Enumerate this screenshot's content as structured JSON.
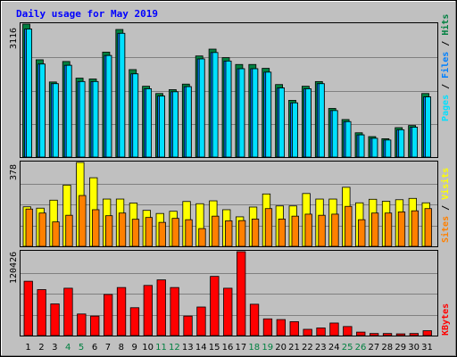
{
  "title": "Daily usage for May 2019",
  "colors": {
    "background": "#c0c0c0",
    "title": "#0000ff",
    "hits": "#008040",
    "files": "#0080ff",
    "pages": "#00e0ff",
    "visits": "#ffff00",
    "sites": "#ff8000",
    "kbytes": "#ff0000",
    "weekend_day": "#008040",
    "weekday": "#000000"
  },
  "panels": {
    "top": {
      "max_label": "3116",
      "legend": [
        "Pages",
        "Files",
        "Hits"
      ]
    },
    "middle": {
      "max_label": "378",
      "legend": [
        "Sites",
        "Visits"
      ]
    },
    "bottom": {
      "max_label": "120426",
      "legend": [
        "KBytes"
      ]
    }
  },
  "chart_data": [
    {
      "type": "bar",
      "title": "Daily usage for May 2019",
      "categories": [
        "1",
        "2",
        "3",
        "4",
        "5",
        "6",
        "7",
        "8",
        "9",
        "10",
        "11",
        "12",
        "13",
        "14",
        "15",
        "16",
        "17",
        "18",
        "19",
        "20",
        "21",
        "22",
        "23",
        "24",
        "25",
        "26",
        "27",
        "28",
        "29",
        "30",
        "31"
      ],
      "weekend_days": [
        "4",
        "5",
        "11",
        "12",
        "18",
        "19",
        "25",
        "26"
      ],
      "ylim": [
        0,
        3116
      ],
      "series": [
        {
          "name": "Hits",
          "values": [
            3116,
            2280,
            1760,
            2240,
            1850,
            1830,
            2460,
            2990,
            2050,
            1660,
            1490,
            1580,
            1710,
            2370,
            2530,
            2330,
            2170,
            2170,
            2080,
            1700,
            1330,
            1660,
            1770,
            1140,
            880,
            570,
            480,
            430,
            690,
            740,
            1490
          ]
        },
        {
          "name": "Files",
          "values": [
            3000,
            2180,
            1720,
            2150,
            1770,
            1770,
            2380,
            2900,
            1950,
            1600,
            1430,
            1530,
            1650,
            2300,
            2450,
            2250,
            2070,
            2070,
            1990,
            1620,
            1270,
            1600,
            1720,
            1090,
            830,
            520,
            440,
            400,
            640,
            700,
            1410
          ]
        },
        {
          "name": "Pages",
          "values": [
            3000,
            2180,
            1720,
            2150,
            1770,
            1770,
            2380,
            2900,
            1950,
            1600,
            1430,
            1530,
            1650,
            2300,
            2450,
            2250,
            2070,
            2070,
            1990,
            1620,
            1270,
            1600,
            1720,
            1090,
            830,
            520,
            440,
            400,
            640,
            700,
            1410
          ]
        }
      ]
    },
    {
      "type": "bar",
      "categories": [
        "1",
        "2",
        "3",
        "4",
        "5",
        "6",
        "7",
        "8",
        "9",
        "10",
        "11",
        "12",
        "13",
        "14",
        "15",
        "16",
        "17",
        "18",
        "19",
        "20",
        "21",
        "22",
        "23",
        "24",
        "25",
        "26",
        "27",
        "28",
        "29",
        "30",
        "31"
      ],
      "ylim": [
        0,
        378
      ],
      "series": [
        {
          "name": "Visits",
          "values": [
            178,
            172,
            208,
            276,
            378,
            309,
            213,
            213,
            195,
            162,
            148,
            158,
            202,
            192,
            205,
            165,
            133,
            177,
            236,
            182,
            182,
            238,
            213,
            213,
            266,
            196,
            212,
            203,
            210,
            216,
            196
          ]
        },
        {
          "name": "Sites",
          "values": [
            168,
            150,
            110,
            140,
            229,
            165,
            138,
            150,
            122,
            130,
            108,
            126,
            120,
            80,
            136,
            115,
            116,
            123,
            170,
            123,
            136,
            145,
            140,
            145,
            180,
            120,
            150,
            150,
            155,
            160,
            170
          ]
        }
      ]
    },
    {
      "type": "bar",
      "categories": [
        "1",
        "2",
        "3",
        "4",
        "5",
        "6",
        "7",
        "8",
        "9",
        "10",
        "11",
        "12",
        "13",
        "14",
        "15",
        "16",
        "17",
        "18",
        "19",
        "20",
        "21",
        "22",
        "23",
        "24",
        "25",
        "26",
        "27",
        "28",
        "29",
        "30",
        "31"
      ],
      "ylim": [
        0,
        120426
      ],
      "series": [
        {
          "name": "KBytes",
          "values": [
            78000,
            66000,
            45500,
            68000,
            31000,
            28000,
            59000,
            69000,
            40000,
            72000,
            80000,
            69000,
            28000,
            41000,
            85000,
            68000,
            120426,
            45000,
            24000,
            23000,
            20000,
            9000,
            11000,
            18000,
            13000,
            5000,
            3000,
            3000,
            2500,
            3000,
            7000
          ]
        }
      ]
    }
  ]
}
